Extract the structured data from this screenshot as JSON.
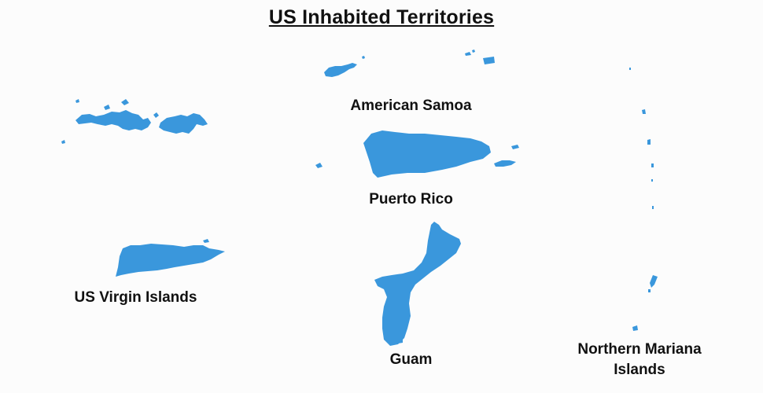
{
  "title": "US Inhabited Territories",
  "land_color": "#3a97dc",
  "background_color": "#fcfcfc",
  "territories": [
    {
      "name": "American Samoa"
    },
    {
      "name": "Puerto Rico"
    },
    {
      "name": "US Virgin Islands"
    },
    {
      "name": "Guam"
    },
    {
      "name": "Northern Mariana Islands"
    }
  ]
}
